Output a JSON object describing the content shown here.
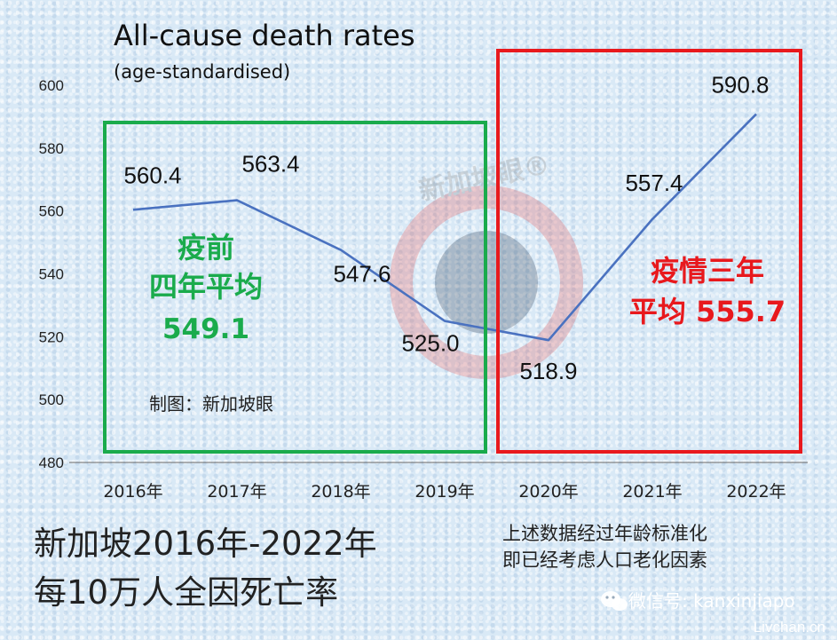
{
  "chart_data": {
    "type": "line",
    "title": "All-cause death rates",
    "subtitle": "(age-standardised)",
    "categories": [
      "2016年",
      "2017年",
      "2018年",
      "2019年",
      "2020年",
      "2021年",
      "2022年"
    ],
    "values": [
      560.4,
      563.4,
      547.6,
      525.0,
      518.9,
      557.4,
      590.8
    ],
    "data_labels": [
      "560.4",
      "563.4",
      "547.6",
      "525.0",
      "518.9",
      "557.4",
      "590.8"
    ],
    "ylim": [
      480,
      600
    ],
    "yticks": [
      480,
      500,
      520,
      540,
      560,
      580,
      600
    ],
    "grid": false,
    "line_color": "#4a72c0"
  },
  "annotations": {
    "pre_line1": "疫前",
    "pre_line2": "四年平均",
    "pre_value": "549.1",
    "pre_color": "#1aab4c",
    "pandemic_line1": "疫情三年",
    "pandemic_line2": "平均 555.7",
    "pandemic_color": "#e8191d",
    "credit": "制图：新加坡眼",
    "watermark": "新加坡眼®"
  },
  "footer": {
    "title_line1": "新加坡2016年-2022年",
    "title_line2": "每10万人全因死亡率",
    "note_line1": "上述数据经过年龄标准化",
    "note_line2": "即已经考虑人口老化因素",
    "wechat": "微信号: kanxinjiapo",
    "site": "Livchan.cn"
  }
}
